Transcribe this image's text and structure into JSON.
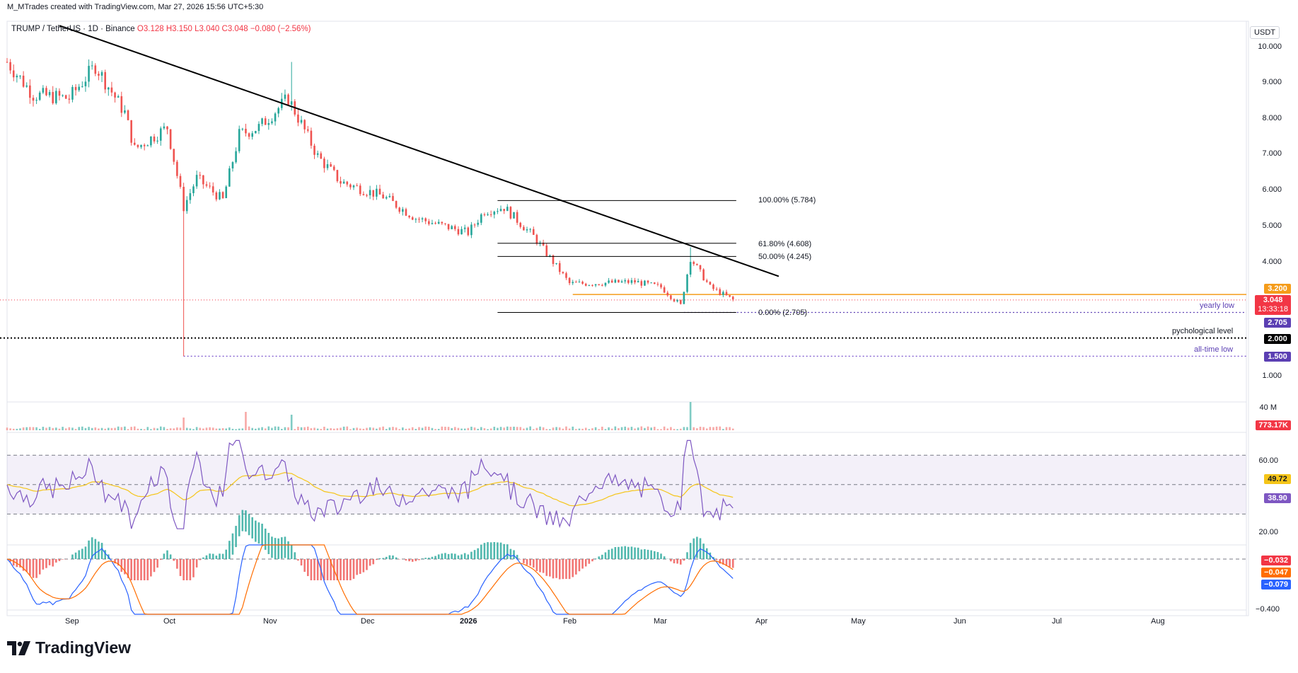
{
  "header": {
    "author_line": "M_MTrades created with TradingView.com, Mar 27, 2026 15:56 UTC+5:30",
    "symbol": "TRUMP / TetherUS · 1D · Binance",
    "open": "O3.128",
    "high": "H3.150",
    "low": "L3.040",
    "close": "C3.048",
    "change": "−0.080 (−2.56%)"
  },
  "brand": {
    "name": "TradingView"
  },
  "price_axis": {
    "currency": "USDT",
    "ticks": [
      "10.000",
      "9.000",
      "8.000",
      "7.000",
      "6.000",
      "5.000",
      "4.000",
      "1.000"
    ]
  },
  "time_axis": {
    "labels": [
      "Sep",
      "Oct",
      "Nov",
      "Dec",
      "2026",
      "Feb",
      "Mar",
      "Apr",
      "May",
      "Jun",
      "Jul",
      "Aug"
    ]
  },
  "price_labels": {
    "resistance": "3.200",
    "last": "3.048",
    "countdown": "13:33:18",
    "yearly_low": "2.705",
    "psych": "2.000",
    "ath_low": "1.500"
  },
  "annotations": {
    "fib_100": "100.00% (5.784)",
    "fib_618": "61.80% (4.608)",
    "fib_50": "50.00% (4.245)",
    "fib_0": "0.00% (2.705)",
    "yearly_low": "yearly low",
    "psych": "pychological level",
    "ath_low": "all-time low"
  },
  "volume": {
    "scale_label": "40 M",
    "last_label": "773.17K"
  },
  "rsi": {
    "ticks": [
      "60.00",
      "20.00"
    ],
    "ma_label": "49.72",
    "rsi_label": "38.90"
  },
  "macd": {
    "ticks": [
      "−0.400"
    ],
    "hist_label": "−0.032",
    "signal_label": "−0.047",
    "macd_label": "−0.079"
  },
  "colors": {
    "up": "#26a69a",
    "down": "#ef5350",
    "trendline": "#000000",
    "resistance": "#f59c1a",
    "last": "#f23645",
    "yearly_low": "#5b3fb3",
    "psych": "#000000",
    "ath_low": "#6a3fc7",
    "rsi_line": "#7e57c2",
    "rsi_ma": "#f5c518",
    "macd_line": "#2962ff",
    "signal_line": "#ff6d00"
  },
  "chart_data": {
    "type": "candlestick",
    "symbol": "TRUMP / TetherUS",
    "interval": "1D",
    "exchange": "Binance",
    "x_range": [
      "2025-08-17",
      "2026-08-31"
    ],
    "ylim": [
      0.5,
      10.5
    ],
    "anchors": [
      {
        "date": "2025-08-17",
        "price": 9.6
      },
      {
        "date": "2025-08-25",
        "price": 8.7
      },
      {
        "date": "2025-09-05",
        "price": 8.6
      },
      {
        "date": "2025-09-13",
        "price": 9.5
      },
      {
        "date": "2025-09-22",
        "price": 8.2
      },
      {
        "date": "2025-09-25",
        "price": 7.2
      },
      {
        "date": "2025-10-05",
        "price": 7.8
      },
      {
        "date": "2025-10-10",
        "price": 5.6
      },
      {
        "date": "2025-10-14",
        "price": 6.4
      },
      {
        "date": "2025-10-22",
        "price": 5.8
      },
      {
        "date": "2025-10-27",
        "price": 7.6
      },
      {
        "date": "2025-11-02",
        "price": 7.8
      },
      {
        "date": "2025-11-11",
        "price": 8.6
      },
      {
        "date": "2025-11-20",
        "price": 7.0
      },
      {
        "date": "2025-11-27",
        "price": 6.3
      },
      {
        "date": "2025-12-10",
        "price": 5.9
      },
      {
        "date": "2025-12-20",
        "price": 5.3
      },
      {
        "date": "2026-01-05",
        "price": 4.9
      },
      {
        "date": "2026-01-10",
        "price": 5.5
      },
      {
        "date": "2026-01-16",
        "price": 5.6
      },
      {
        "date": "2026-01-25",
        "price": 4.8
      },
      {
        "date": "2026-02-05",
        "price": 3.5
      },
      {
        "date": "2026-02-10",
        "price": 3.5
      },
      {
        "date": "2026-02-25",
        "price": 3.55
      },
      {
        "date": "2026-03-05",
        "price": 3.4
      },
      {
        "date": "2026-03-11",
        "price": 2.9
      },
      {
        "date": "2026-03-14",
        "price": 4.2
      },
      {
        "date": "2026-03-20",
        "price": 3.4
      },
      {
        "date": "2026-03-27",
        "price": 3.05
      }
    ],
    "spikes": [
      {
        "date": "2025-10-10",
        "low": 1.5
      },
      {
        "date": "2025-11-12",
        "high": 9.6
      },
      {
        "date": "2026-03-14",
        "high": 4.5
      }
    ],
    "trendline": {
      "from": {
        "date": "2025-09-02",
        "price": 10.6
      },
      "to": {
        "date": "2026-04-10",
        "price": 3.7
      }
    },
    "fib": {
      "from": {
        "date": "2026-01-14"
      },
      "to": {
        "date": "2026-03-28"
      },
      "levels": [
        5.784,
        4.608,
        4.245,
        2.705
      ]
    },
    "horizontal_levels": [
      {
        "price": 3.2,
        "label": "3.200"
      },
      {
        "price": 2.705,
        "label": "yearly low"
      },
      {
        "price": 2.0,
        "label": "pychological level"
      },
      {
        "price": 1.5,
        "label": "all-time low"
      }
    ],
    "last_price": 3.048,
    "volume_spikes": [
      {
        "date": "2025-10-10",
        "value": 18
      },
      {
        "date": "2025-10-29",
        "value": 26
      },
      {
        "date": "2025-11-12",
        "value": 22
      },
      {
        "date": "2026-03-14",
        "value": 40
      }
    ],
    "volume_last": "773.17K",
    "rsi": {
      "last": 38.9,
      "ma": 49.72,
      "levels": [
        70,
        30
      ]
    },
    "macd": {
      "hist": -0.032,
      "signal": -0.047,
      "macd": -0.079
    }
  }
}
